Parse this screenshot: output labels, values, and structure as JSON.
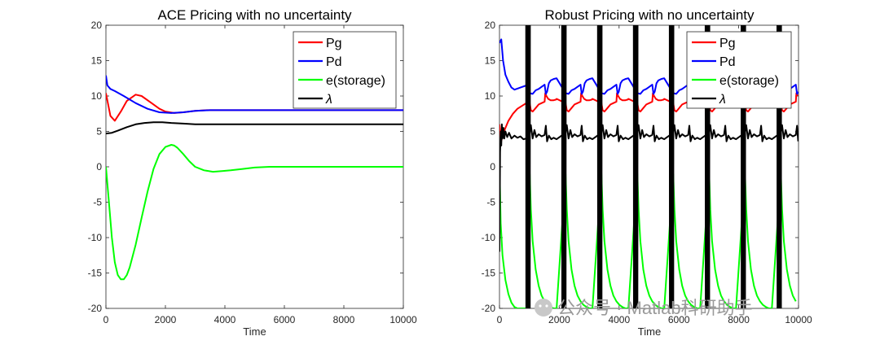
{
  "chart_data": [
    {
      "type": "line",
      "title": "ACE Pricing with no uncertainty",
      "xlabel": "Time",
      "ylabel": "",
      "xlim": [
        0,
        10000
      ],
      "ylim": [
        -20,
        20
      ],
      "xticks": [
        0,
        2000,
        4000,
        6000,
        8000,
        10000
      ],
      "yticks": [
        -20,
        -15,
        -10,
        -5,
        0,
        5,
        10,
        15,
        20
      ],
      "legend_position": "top-right",
      "series": [
        {
          "name": "Pg",
          "color": "#ff0000",
          "x": [
            0,
            150,
            300,
            500,
            700,
            1000,
            1200,
            1500,
            1800,
            2000,
            2300,
            2600,
            3000,
            3400,
            4000,
            5000,
            6000,
            8000,
            10000
          ],
          "y": [
            10.4,
            7.2,
            6.5,
            7.8,
            9.3,
            10.2,
            10.0,
            9.1,
            8.2,
            7.8,
            7.6,
            7.7,
            7.9,
            8.0,
            8.0,
            8.0,
            8.0,
            8.0,
            8.0
          ]
        },
        {
          "name": "Pd",
          "color": "#0000ff",
          "x": [
            0,
            50,
            150,
            300,
            600,
            1000,
            1400,
            1800,
            2200,
            2600,
            3000,
            3500,
            4000,
            5000,
            6000,
            8000,
            10000
          ],
          "y": [
            12.9,
            11.5,
            11.0,
            10.7,
            10.0,
            9.0,
            8.2,
            7.7,
            7.6,
            7.7,
            7.9,
            8.0,
            8.0,
            8.0,
            8.0,
            8.0,
            8.0
          ]
        },
        {
          "name": "e(storage)",
          "color": "#00ff00",
          "x": [
            0,
            100,
            200,
            300,
            400,
            500,
            600,
            700,
            800,
            1000,
            1200,
            1400,
            1600,
            1800,
            2000,
            2200,
            2300,
            2400,
            2600,
            2800,
            3000,
            3300,
            3600,
            3900,
            4200,
            4600,
            5000,
            5500,
            6000,
            7000,
            8000,
            10000
          ],
          "y": [
            0.0,
            -5.0,
            -10.0,
            -13.5,
            -15.3,
            -15.9,
            -15.9,
            -15.3,
            -14.2,
            -11.0,
            -7.2,
            -3.5,
            -0.3,
            1.8,
            2.8,
            3.1,
            3.0,
            2.7,
            1.8,
            0.8,
            0.0,
            -0.5,
            -0.7,
            -0.6,
            -0.5,
            -0.3,
            -0.1,
            0.0,
            0.0,
            0.0,
            0.0,
            0.0
          ]
        },
        {
          "name": "λ",
          "color": "#000000",
          "x": [
            0,
            200,
            400,
            700,
            1000,
            1300,
            1600,
            1900,
            2200,
            2600,
            3000,
            3500,
            4000,
            5000,
            6000,
            8000,
            10000
          ],
          "y": [
            4.7,
            4.8,
            5.1,
            5.6,
            6.0,
            6.2,
            6.3,
            6.3,
            6.2,
            6.1,
            6.0,
            6.0,
            6.0,
            6.0,
            6.0,
            6.0,
            6.0
          ]
        }
      ]
    },
    {
      "type": "line",
      "title": "Robust Pricing with no uncertainty",
      "xlabel": "Time",
      "ylabel": "",
      "xlim": [
        0,
        10000
      ],
      "ylim": [
        -20,
        20
      ],
      "xticks": [
        0,
        2000,
        4000,
        6000,
        8000,
        10000
      ],
      "yticks": [
        -20,
        -15,
        -10,
        -5,
        0,
        5,
        10,
        15,
        20
      ],
      "legend_position": "top-right",
      "period": 1200,
      "spike_times": [
        900,
        2100,
        3300,
        4500,
        5700,
        6900,
        8100,
        9300
      ],
      "series": [
        {
          "name": "Pg",
          "color": "#ff0000",
          "cycle_x": [
            0,
            40,
            100,
            200,
            300,
            400,
            500,
            520,
            560,
            620,
            700,
            800,
            880,
            900
          ],
          "cycle_y": [
            9.0,
            8.0,
            7.8,
            8.3,
            8.8,
            9.0,
            9.2,
            10.4,
            10.0,
            9.6,
            9.4,
            9.4,
            9.5,
            9.6
          ],
          "start_x": [
            0,
            50,
            150,
            300,
            450,
            600,
            750,
            900
          ],
          "start_y": [
            6.0,
            3.5,
            5.0,
            6.5,
            7.5,
            8.2,
            8.6,
            9.0
          ]
        },
        {
          "name": "Pd",
          "color": "#0000ff",
          "cycle_x": [
            0,
            100,
            200,
            300,
            400,
            500,
            540,
            580,
            640,
            700,
            800,
            880,
            900
          ],
          "cycle_y": [
            10.4,
            10.3,
            10.8,
            11.0,
            11.3,
            11.6,
            10.3,
            10.6,
            11.8,
            12.2,
            12.4,
            12.5,
            12.5
          ],
          "start_x": [
            0,
            60,
            120,
            200,
            300,
            400,
            500,
            700,
            900
          ],
          "start_y": [
            17.5,
            18.0,
            15.0,
            13.0,
            12.0,
            11.2,
            10.9,
            11.2,
            11.5
          ]
        },
        {
          "name": "e(storage)",
          "color": "#00ff00",
          "cycle_x": [
            0,
            40,
            100,
            200,
            300,
            400,
            500,
            600,
            700,
            800,
            900
          ],
          "cycle_y": [
            -1.0,
            -6.0,
            -10.5,
            -14.5,
            -16.8,
            -18.2,
            -19.0,
            -19.5,
            -19.8,
            -20.0,
            -20.0
          ],
          "start_x": [
            0,
            40,
            100,
            200,
            300,
            400,
            500,
            600,
            700,
            800,
            900
          ],
          "start_y": [
            0.0,
            -8.0,
            -12.5,
            -16.0,
            -18.0,
            -19.2,
            -19.8,
            -20.0,
            -20.0,
            -20.0,
            -20.0
          ]
        },
        {
          "name": "λ",
          "color": "#000000",
          "cycle_x": [
            0,
            40,
            100,
            160,
            220,
            300,
            400,
            500,
            540,
            580,
            640,
            720,
            800,
            900
          ],
          "cycle_y": [
            4.8,
            5.9,
            4.0,
            5.2,
            4.2,
            4.6,
            4.3,
            4.5,
            5.8,
            3.6,
            4.4,
            3.9,
            4.1,
            3.9
          ],
          "start_x": [
            0,
            20,
            40,
            60,
            80,
            100,
            130,
            160,
            200,
            260,
            320,
            400,
            500,
            600,
            700,
            800,
            900
          ],
          "start_y": [
            -12.0,
            2.0,
            5.0,
            3.0,
            6.0,
            4.0,
            5.5,
            4.0,
            5.0,
            4.2,
            4.8,
            4.0,
            4.4,
            4.1,
            4.3,
            3.9,
            4.0
          ]
        }
      ]
    }
  ],
  "watermark": {
    "text": "公众号 · Matlab科研助手"
  }
}
